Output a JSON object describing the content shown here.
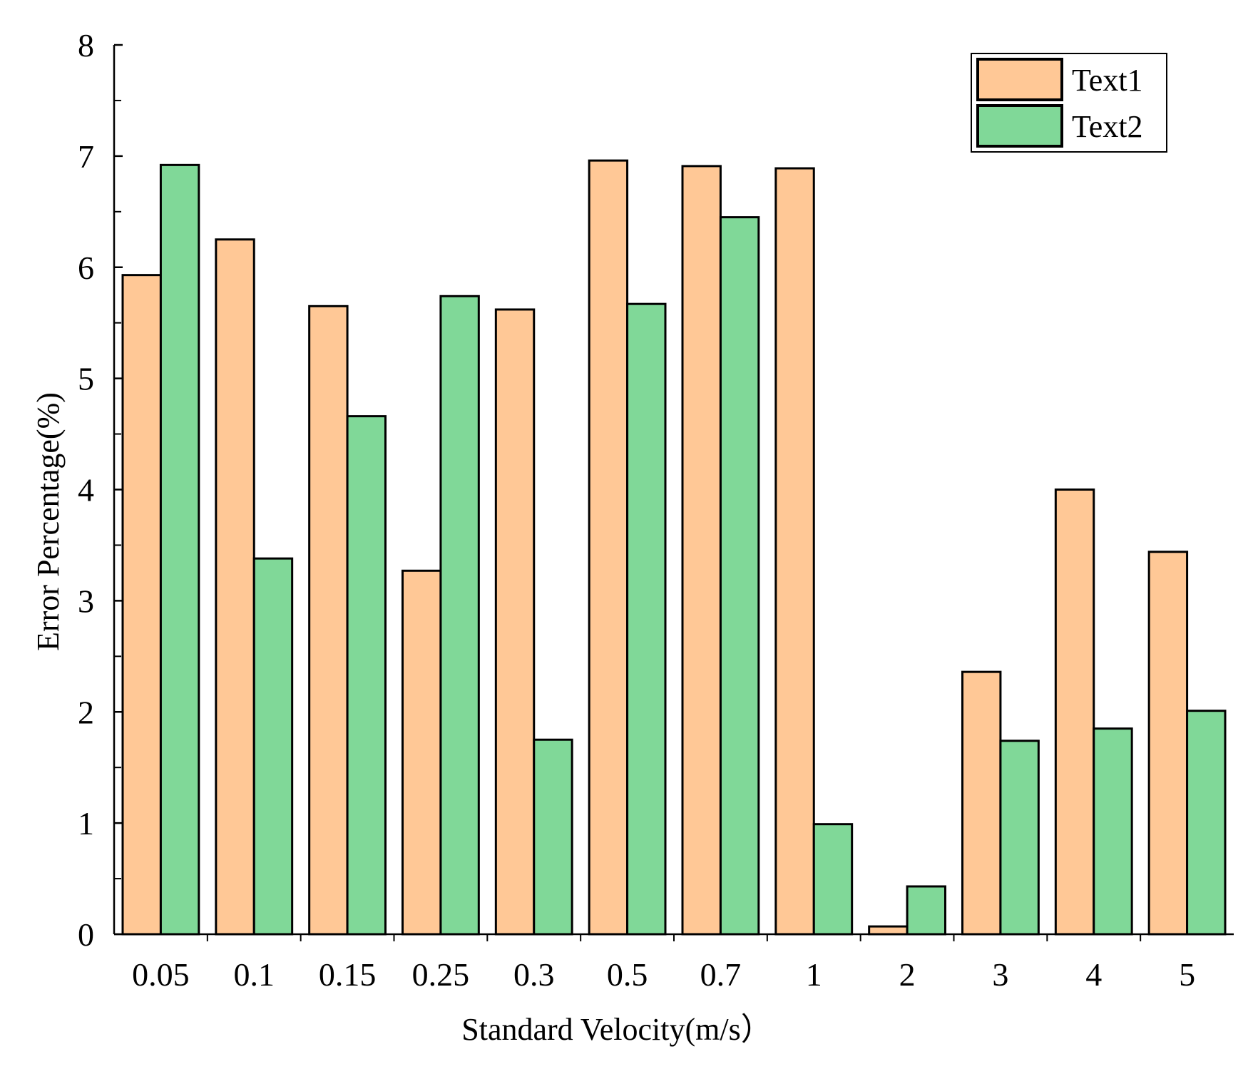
{
  "chart_data": {
    "type": "bar",
    "title": "",
    "xlabel": "Standard  Velocity(m/s）",
    "ylabel": "Error Percentage(%)",
    "ylim": [
      0,
      8
    ],
    "yticks": [
      "0",
      "1",
      "2",
      "3",
      "4",
      "5",
      "6",
      "7",
      "8"
    ],
    "categories": [
      "0.05",
      "0.1",
      "0.15",
      "0.25",
      "0.3",
      "0.5",
      "0.7",
      "1",
      "2",
      "3",
      "4",
      "5"
    ],
    "series": [
      {
        "name": "Text1",
        "color": "#FFC896",
        "values": [
          5.93,
          6.25,
          5.65,
          3.27,
          5.62,
          6.96,
          6.91,
          6.89,
          0.07,
          2.36,
          4.0,
          3.44
        ]
      },
      {
        "name": "Text2",
        "color": "#80D898",
        "values": [
          6.92,
          3.38,
          4.66,
          5.74,
          1.75,
          5.67,
          6.45,
          0.99,
          0.43,
          1.74,
          1.85,
          2.01
        ]
      }
    ],
    "legend_position": "top-right",
    "grid": false
  }
}
